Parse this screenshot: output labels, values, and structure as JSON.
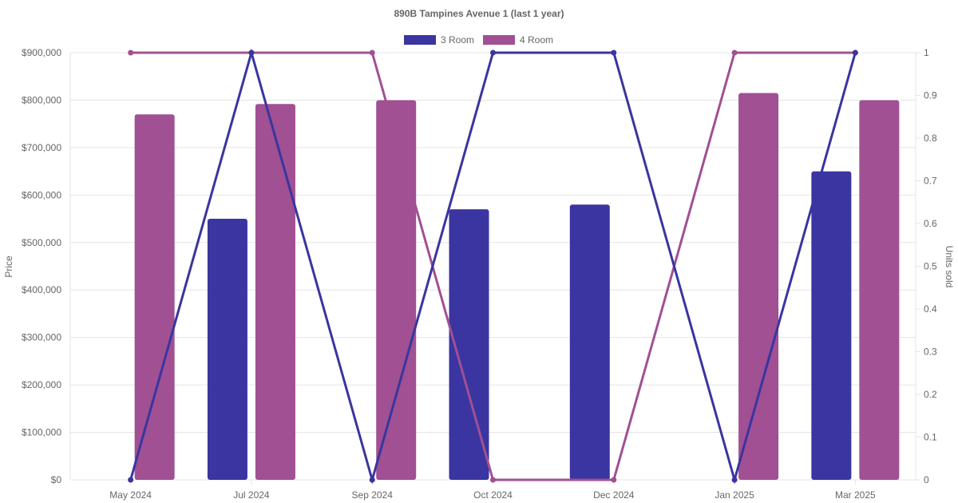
{
  "chart_data": {
    "type": "bar",
    "title": "890B Tampines Avenue 1 (last 1 year)",
    "categories": [
      "May 2024",
      "Jul 2024",
      "Sep 2024",
      "Oct 2024",
      "Dec 2024",
      "Jan 2025",
      "Mar 2025"
    ],
    "ylabel": "Price",
    "y2label": "Units sold",
    "ylim": [
      0,
      900000
    ],
    "y2lim": [
      0,
      1
    ],
    "yticks": [
      "$0",
      "$100,000",
      "$200,000",
      "$300,000",
      "$400,000",
      "$500,000",
      "$600,000",
      "$700,000",
      "$800,000",
      "$900,000"
    ],
    "y2ticks": [
      "0",
      "0.1",
      "0.2",
      "0.3",
      "0.4",
      "0.5",
      "0.6",
      "0.7",
      "0.8",
      "0.9",
      "1"
    ],
    "legend_position": "top",
    "grid": true,
    "series": [
      {
        "name": "3 Room",
        "color": "#3a35a0",
        "price": [
          null,
          550000,
          null,
          570000,
          580000,
          null,
          650000
        ],
        "units": [
          0,
          1,
          0,
          1,
          1,
          0,
          1
        ]
      },
      {
        "name": "4 Room",
        "color": "#a05093",
        "price": [
          770000,
          792000,
          800000,
          null,
          null,
          815000,
          800000
        ],
        "units": [
          1,
          1,
          1,
          0,
          0,
          1,
          1
        ]
      }
    ]
  }
}
